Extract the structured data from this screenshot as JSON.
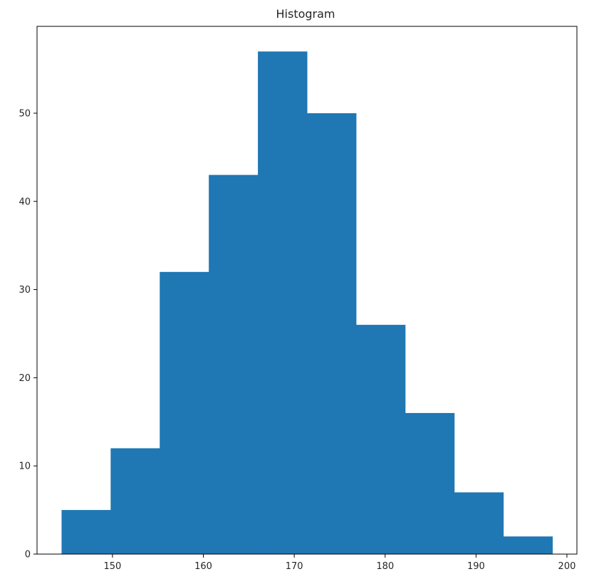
{
  "chart_data": {
    "type": "bar",
    "subtype": "histogram",
    "title": "Histogram",
    "xlabel": "",
    "ylabel": "",
    "bin_edges": [
      144.4,
      149.8,
      155.2,
      160.6,
      166.0,
      171.4,
      176.8,
      182.2,
      187.6,
      193.0,
      198.4
    ],
    "values": [
      5,
      12,
      32,
      43,
      57,
      50,
      26,
      16,
      7,
      2
    ],
    "xlim": [
      141.7,
      201.1
    ],
    "ylim": [
      0,
      59.85
    ],
    "xticks": [
      150,
      160,
      170,
      180,
      190,
      200
    ],
    "yticks": [
      0,
      10,
      20,
      30,
      40,
      50
    ],
    "grid": false,
    "bar_color": "#1f77b4",
    "axis_color": "#000000",
    "text_color": "#262626"
  }
}
